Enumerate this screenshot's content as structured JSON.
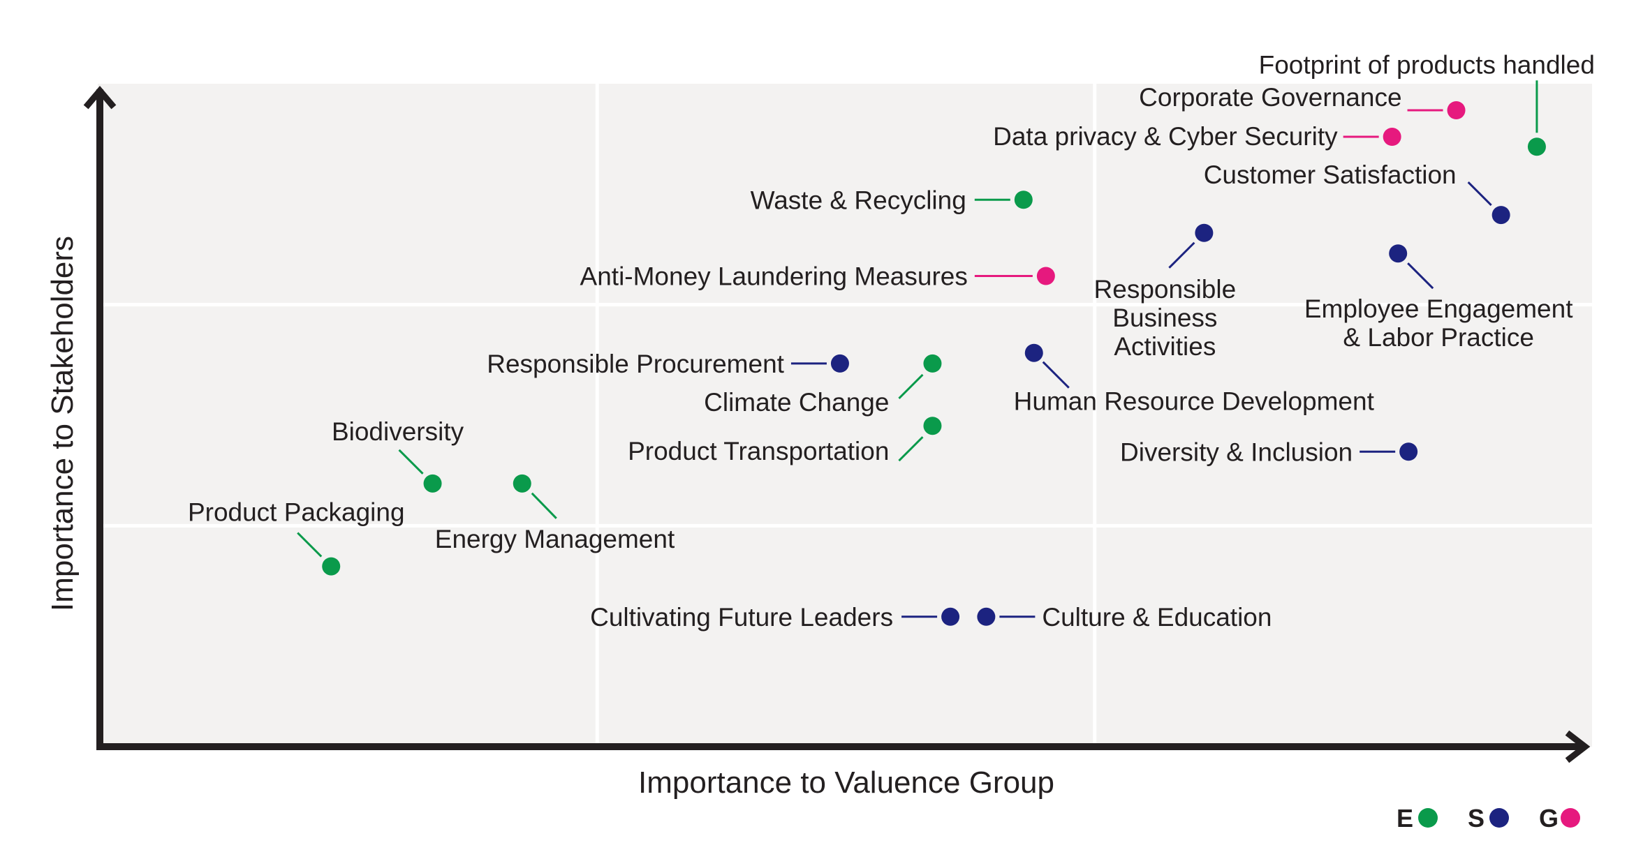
{
  "chart_data": {
    "type": "scatter",
    "title": "",
    "xlabel": "Importance to Valuence Group",
    "ylabel": "Importance to Stakeholders",
    "xlim": [
      0,
      100
    ],
    "ylim": [
      0,
      100
    ],
    "grid": true,
    "gridlines_x": [
      33.33,
      66.67
    ],
    "gridlines_y": [
      33.33,
      66.67
    ],
    "ticks_shown": false,
    "colors": {
      "E": "#0a9a4b",
      "S": "#1c2380",
      "G": "#e6197e"
    },
    "legend": {
      "placement": "bottom-right",
      "entries": [
        {
          "key": "E",
          "label": "E"
        },
        {
          "key": "S",
          "label": "S"
        },
        {
          "key": "G",
          "label": "G"
        }
      ]
    },
    "series": [
      {
        "key": "E",
        "points": [
          {
            "label": "Footprint of products handled",
            "x": 96.3,
            "y": 90.5
          },
          {
            "label": "Waste & Recycling",
            "x": 61.9,
            "y": 82.5
          },
          {
            "label": "Climate Change",
            "x": 55.8,
            "y": 57.8
          },
          {
            "label": "Product Transportation",
            "x": 55.8,
            "y": 48.4
          },
          {
            "label": "Biodiversity",
            "x": 22.3,
            "y": 39.7
          },
          {
            "label": "Energy Management",
            "x": 28.3,
            "y": 39.7
          },
          {
            "label": "Product Packaging",
            "x": 15.5,
            "y": 27.2
          }
        ]
      },
      {
        "key": "S",
        "points": [
          {
            "label": "Customer Satisfaction",
            "x": 93.9,
            "y": 80.2
          },
          {
            "label": "Responsible Business Activities",
            "x": 74.0,
            "y": 77.5
          },
          {
            "label": "Employee Engagement & Labor Practice",
            "x": 87.0,
            "y": 74.4
          },
          {
            "label": "Responsible Procurement",
            "x": 49.6,
            "y": 57.8
          },
          {
            "label": "Human Resource Development",
            "x": 62.6,
            "y": 59.4
          },
          {
            "label": "Diversity & Inclusion",
            "x": 87.7,
            "y": 44.5
          },
          {
            "label": "Cultivating Future Leaders",
            "x": 57.0,
            "y": 19.6
          },
          {
            "label": "Culture & Education",
            "x": 59.4,
            "y": 19.6
          }
        ]
      },
      {
        "key": "G",
        "points": [
          {
            "label": "Corporate Governance",
            "x": 90.9,
            "y": 96.0
          },
          {
            "label": "Data privacy & Cyber Security",
            "x": 86.6,
            "y": 92.0
          },
          {
            "label": "Anti-Money Laundering Measures",
            "x": 63.4,
            "y": 71.0
          }
        ]
      }
    ]
  }
}
